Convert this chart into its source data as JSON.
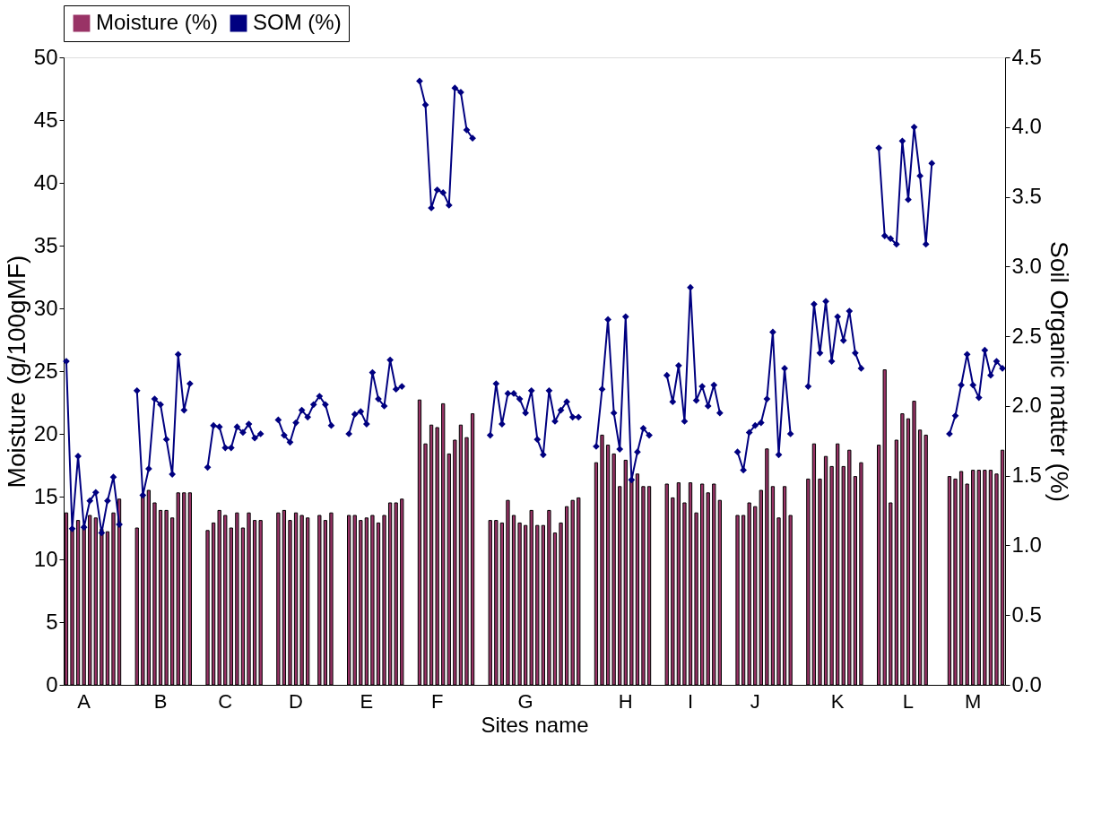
{
  "chart_data": {
    "type": "bar",
    "xlabel": "Sites name",
    "ylabel": "Moisture (g/100gMF)",
    "y2label": "Soil Organic matter (%)",
    "categories": [
      null,
      null,
      null,
      "A",
      null,
      null,
      null,
      null,
      null,
      null,
      null,
      null,
      null,
      null,
      null,
      null,
      "B",
      null,
      null,
      null,
      null,
      null,
      null,
      null,
      null,
      null,
      null,
      "C",
      null,
      null,
      null,
      null,
      null,
      null,
      null,
      null,
      null,
      null,
      null,
      "D",
      null,
      null,
      null,
      null,
      null,
      null,
      null,
      null,
      null,
      null,
      null,
      "E",
      null,
      null,
      null,
      null,
      null,
      null,
      null,
      null,
      null,
      null,
      null,
      "F",
      null,
      null,
      null,
      null,
      null,
      null,
      null,
      null,
      null,
      null,
      null,
      null,
      null,
      null,
      "G",
      null,
      null,
      null,
      null,
      null,
      null,
      null,
      null,
      null,
      null,
      null,
      null,
      null,
      null,
      null,
      null,
      "H",
      null,
      null,
      null,
      null,
      null,
      null,
      null,
      null,
      null,
      null,
      "I",
      null,
      null,
      null,
      null,
      null,
      null,
      null,
      null,
      null,
      null,
      "J",
      null,
      null,
      null,
      null,
      null,
      null,
      null,
      null,
      null,
      null,
      null,
      null,
      null,
      "K",
      null,
      null,
      null,
      null,
      null,
      null,
      null,
      null,
      null,
      null,
      null,
      "L",
      null,
      null,
      null,
      null,
      null,
      null,
      null,
      null,
      null,
      null,
      "M",
      null,
      null,
      null,
      null,
      null
    ],
    "series": [
      {
        "name": "Moisture (%)",
        "color": "#993366",
        "values": [
          13.7,
          12.4,
          13.1,
          12.7,
          13.5,
          13.3,
          12.4,
          12.2,
          13.7,
          14.8,
          null,
          null,
          12.5,
          15.2,
          15.5,
          14.5,
          13.9,
          13.9,
          13.3,
          15.3,
          15.3,
          15.3,
          null,
          null,
          12.3,
          12.9,
          13.9,
          13.5,
          12.5,
          13.7,
          12.5,
          13.7,
          13.1,
          13.1,
          null,
          null,
          13.7,
          13.9,
          13.1,
          13.7,
          13.5,
          13.3,
          null,
          13.5,
          13.1,
          13.7,
          null,
          null,
          13.5,
          13.5,
          13.1,
          13.3,
          13.5,
          12.9,
          13.5,
          14.5,
          14.5,
          14.8,
          null,
          null,
          22.7,
          19.2,
          20.7,
          20.5,
          22.4,
          18.4,
          19.5,
          20.7,
          19.7,
          21.6,
          null,
          null,
          13.1,
          13.1,
          12.9,
          14.7,
          13.5,
          12.9,
          12.7,
          13.9,
          12.7,
          12.7,
          13.9,
          12.1,
          12.9,
          14.2,
          14.7,
          14.9,
          null,
          null,
          17.7,
          19.9,
          19.1,
          18.4,
          15.8,
          17.9,
          16.4,
          16.8,
          15.8,
          15.8,
          null,
          null,
          16.0,
          14.9,
          16.1,
          14.5,
          16.1,
          13.7,
          16.0,
          15.3,
          16.0,
          14.7,
          null,
          null,
          13.5,
          13.5,
          14.5,
          14.2,
          15.5,
          18.8,
          15.8,
          13.3,
          15.8,
          13.5,
          null,
          null,
          16.4,
          19.2,
          16.4,
          18.2,
          17.4,
          19.2,
          17.4,
          18.7,
          16.6,
          17.7,
          null,
          null,
          19.1,
          25.1,
          14.5,
          19.5,
          21.6,
          21.2,
          22.6,
          20.3,
          19.9,
          null,
          null,
          null,
          16.6,
          16.4,
          17.0,
          16.0,
          17.1,
          17.1,
          17.1,
          17.1,
          16.8,
          18.7
        ]
      },
      {
        "name": "SOM (%)",
        "type": "line",
        "axis": "y2",
        "color": "#000080",
        "marker": "diamond",
        "values": [
          2.32,
          1.12,
          1.64,
          1.13,
          1.32,
          1.38,
          1.09,
          1.32,
          1.49,
          1.15,
          null,
          null,
          2.11,
          1.36,
          1.55,
          2.05,
          2.01,
          1.76,
          1.51,
          2.37,
          1.97,
          2.16,
          null,
          null,
          1.56,
          1.86,
          1.85,
          1.7,
          1.7,
          1.85,
          1.81,
          1.87,
          1.77,
          1.8,
          null,
          null,
          1.9,
          1.79,
          1.74,
          1.88,
          1.97,
          1.92,
          2.01,
          2.07,
          2.01,
          1.86,
          null,
          null,
          1.8,
          1.94,
          1.96,
          1.87,
          2.24,
          2.05,
          2.0,
          2.33,
          2.12,
          2.14,
          null,
          null,
          4.33,
          4.16,
          3.42,
          3.55,
          3.53,
          3.44,
          4.28,
          4.25,
          3.98,
          3.92,
          null,
          null,
          1.79,
          2.16,
          1.87,
          2.09,
          2.09,
          2.05,
          1.95,
          2.11,
          1.76,
          1.65,
          2.11,
          1.89,
          1.97,
          2.03,
          1.92,
          1.92,
          null,
          null,
          1.71,
          2.12,
          2.62,
          1.95,
          1.69,
          2.64,
          1.47,
          1.67,
          1.84,
          1.79,
          null,
          null,
          2.22,
          2.03,
          2.29,
          1.89,
          2.85,
          2.04,
          2.14,
          2.0,
          2.15,
          1.95,
          null,
          null,
          1.67,
          1.54,
          1.81,
          1.86,
          1.88,
          2.05,
          2.53,
          1.65,
          2.27,
          1.8,
          null,
          null,
          2.14,
          2.73,
          2.38,
          2.75,
          2.32,
          2.64,
          2.47,
          2.68,
          2.38,
          2.27,
          null,
          null,
          3.85,
          3.22,
          3.2,
          3.16,
          3.9,
          3.48,
          4.0,
          3.65,
          3.16,
          3.74,
          null,
          null,
          1.8,
          1.93,
          2.15,
          2.37,
          2.15,
          2.06,
          2.4,
          2.22,
          2.32,
          2.27
        ]
      }
    ],
    "ylim": [
      0,
      50
    ],
    "yticks": [
      0,
      5,
      10,
      15,
      20,
      25,
      30,
      35,
      40,
      45,
      50
    ],
    "y2lim": [
      0,
      4.5
    ],
    "y2ticks": [
      {
        "value": 0,
        "label": "0.0"
      },
      {
        "value": 0.5,
        "label": "0.5"
      },
      {
        "value": 1,
        "label": "1.0"
      },
      {
        "value": 1.5,
        "label": "1.5"
      },
      {
        "value": 2,
        "label": "2.0"
      },
      {
        "value": 2.5,
        "label": "2.5"
      },
      {
        "value": 3,
        "label": "3.0"
      },
      {
        "value": 3.5,
        "label": "3.5"
      },
      {
        "value": 4,
        "label": "4.0"
      },
      {
        "value": 4.5,
        "label": "4.5"
      }
    ],
    "grid": false,
    "legend": "top",
    "line_style": "solid"
  }
}
